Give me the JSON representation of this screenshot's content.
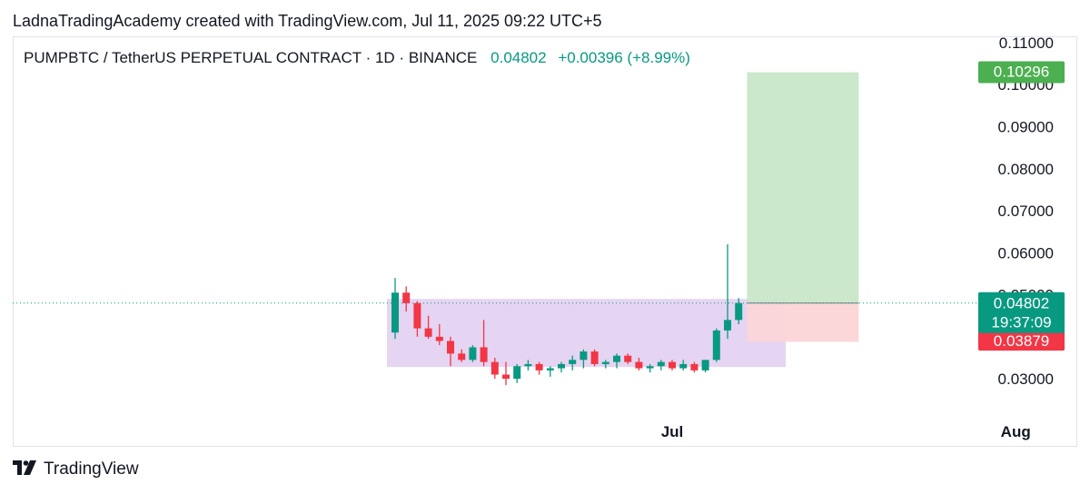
{
  "header": {
    "attribution": "LadnaTradingAcademy created with TradingView.com, Jul 11, 2025 09:22 UTC+5"
  },
  "legend": {
    "symbol": "PUMPBTC / TetherUS PERPETUAL CONTRACT · 1D · BINANCE",
    "last_price": "0.04802",
    "change": "+0.00396 (+8.99%)"
  },
  "footer": {
    "brand": "TradingView",
    "logo_icon": "tradingview-logo-icon"
  },
  "colors": {
    "up": "#089981",
    "down": "#f23645",
    "range_box": "#e1cdf0",
    "target_zone": "#c8e6c9",
    "stop_zone": "#fbd5d8",
    "target_tag": "#4caf50",
    "stop_tag": "#f23645",
    "price_tag": "#089981"
  },
  "chart_data": {
    "type": "candlestick",
    "interval": "1D",
    "y_axis": {
      "ylim": [
        0.0216,
        0.1115
      ],
      "ticks": [
        "0.11000",
        "0.10000",
        "0.09000",
        "0.08000",
        "0.07000",
        "0.06000",
        "0.05000",
        "0.03000"
      ],
      "tick_values": [
        0.11,
        0.1,
        0.09,
        0.08,
        0.07,
        0.06,
        0.05,
        0.03
      ]
    },
    "x_axis": {
      "labels": [
        "Jul",
        "Aug"
      ],
      "label_index": [
        25,
        56
      ]
    },
    "candles": [
      {
        "o": 0.041,
        "h": 0.054,
        "l": 0.0395,
        "c": 0.0505
      },
      {
        "o": 0.0505,
        "h": 0.052,
        "l": 0.046,
        "c": 0.048
      },
      {
        "o": 0.048,
        "h": 0.0485,
        "l": 0.04,
        "c": 0.042
      },
      {
        "o": 0.042,
        "h": 0.045,
        "l": 0.0395,
        "c": 0.04
      },
      {
        "o": 0.04,
        "h": 0.043,
        "l": 0.038,
        "c": 0.039
      },
      {
        "o": 0.039,
        "h": 0.04,
        "l": 0.033,
        "c": 0.036
      },
      {
        "o": 0.036,
        "h": 0.037,
        "l": 0.034,
        "c": 0.0345
      },
      {
        "o": 0.0345,
        "h": 0.038,
        "l": 0.034,
        "c": 0.0375
      },
      {
        "o": 0.0375,
        "h": 0.044,
        "l": 0.033,
        "c": 0.034
      },
      {
        "o": 0.034,
        "h": 0.035,
        "l": 0.03,
        "c": 0.031
      },
      {
        "o": 0.031,
        "h": 0.034,
        "l": 0.0285,
        "c": 0.03
      },
      {
        "o": 0.03,
        "h": 0.0335,
        "l": 0.029,
        "c": 0.033
      },
      {
        "o": 0.033,
        "h": 0.0345,
        "l": 0.032,
        "c": 0.0335
      },
      {
        "o": 0.0335,
        "h": 0.034,
        "l": 0.031,
        "c": 0.032
      },
      {
        "o": 0.032,
        "h": 0.033,
        "l": 0.0305,
        "c": 0.0325
      },
      {
        "o": 0.0325,
        "h": 0.034,
        "l": 0.0315,
        "c": 0.0335
      },
      {
        "o": 0.0335,
        "h": 0.0355,
        "l": 0.032,
        "c": 0.0345
      },
      {
        "o": 0.0345,
        "h": 0.037,
        "l": 0.0325,
        "c": 0.0365
      },
      {
        "o": 0.0365,
        "h": 0.037,
        "l": 0.033,
        "c": 0.0335
      },
      {
        "o": 0.0335,
        "h": 0.0345,
        "l": 0.0325,
        "c": 0.034
      },
      {
        "o": 0.034,
        "h": 0.036,
        "l": 0.0325,
        "c": 0.0355
      },
      {
        "o": 0.0355,
        "h": 0.036,
        "l": 0.0335,
        "c": 0.034
      },
      {
        "o": 0.034,
        "h": 0.035,
        "l": 0.032,
        "c": 0.0325
      },
      {
        "o": 0.0325,
        "h": 0.0335,
        "l": 0.0315,
        "c": 0.033
      },
      {
        "o": 0.033,
        "h": 0.0345,
        "l": 0.032,
        "c": 0.034
      },
      {
        "o": 0.034,
        "h": 0.0345,
        "l": 0.032,
        "c": 0.0325
      },
      {
        "o": 0.0325,
        "h": 0.0345,
        "l": 0.032,
        "c": 0.0335
      },
      {
        "o": 0.0335,
        "h": 0.034,
        "l": 0.0315,
        "c": 0.032
      },
      {
        "o": 0.032,
        "h": 0.0345,
        "l": 0.0315,
        "c": 0.0345
      },
      {
        "o": 0.0345,
        "h": 0.042,
        "l": 0.034,
        "c": 0.0415
      },
      {
        "o": 0.0415,
        "h": 0.062,
        "l": 0.0395,
        "c": 0.044
      },
      {
        "o": 0.044,
        "h": 0.0492,
        "l": 0.043,
        "c": 0.048
      }
    ],
    "consolidation_box": {
      "from_index": 0,
      "to_index": 35,
      "top": 0.049,
      "bottom": 0.0328
    },
    "position": {
      "type": "long",
      "from_index": 32,
      "to_index": 42,
      "entry": 0.04802,
      "target": 0.10296,
      "stop": 0.03879
    },
    "price_line": 0.04802,
    "price_tags": {
      "target": "0.10296",
      "last": "0.04802",
      "countdown": "19:37:09",
      "stop": "0.03879"
    }
  }
}
